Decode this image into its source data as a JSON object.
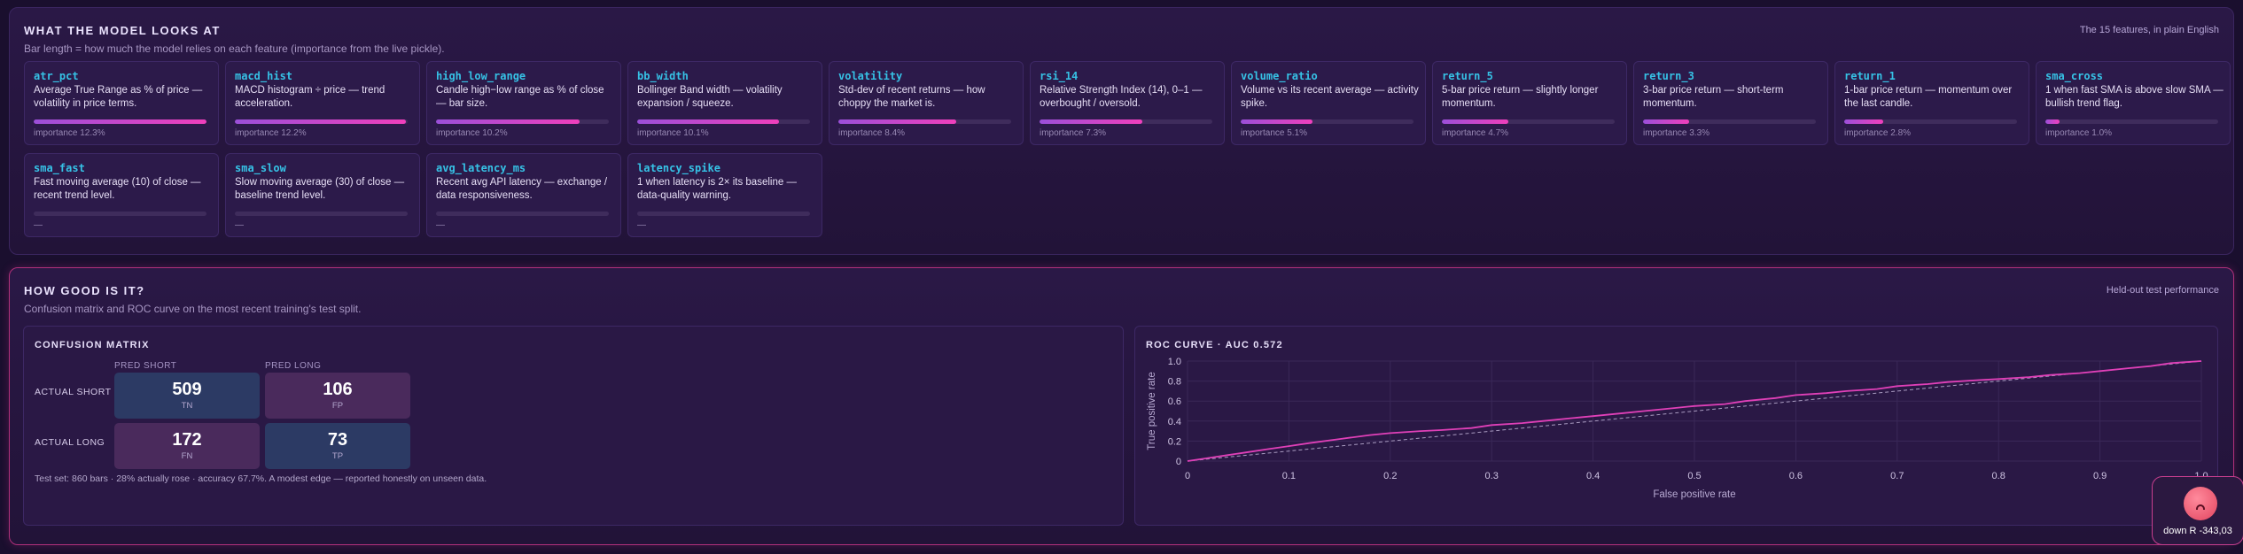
{
  "features_panel": {
    "title": "WHAT THE MODEL LOOKS AT",
    "subtitle": "Bar length = how much the model relies on each feature (importance from the live pickle).",
    "right_note": "The 15 features, in plain English",
    "features": [
      {
        "name": "atr_pct",
        "desc": "Average True Range as % of price — volatility in price terms.",
        "importance": 12.3,
        "importance_label": "importance 12.3%"
      },
      {
        "name": "macd_hist",
        "desc": "MACD histogram ÷ price — trend acceleration.",
        "importance": 12.2,
        "importance_label": "importance 12.2%"
      },
      {
        "name": "high_low_range",
        "desc": "Candle high−low range as % of close — bar size.",
        "importance": 10.2,
        "importance_label": "importance 10.2%"
      },
      {
        "name": "bb_width",
        "desc": "Bollinger Band width — volatility expansion / squeeze.",
        "importance": 10.1,
        "importance_label": "importance 10.1%"
      },
      {
        "name": "volatility",
        "desc": "Std-dev of recent returns — how choppy the market is.",
        "importance": 8.4,
        "importance_label": "importance 8.4%"
      },
      {
        "name": "rsi_14",
        "desc": "Relative Strength Index (14), 0–1 — overbought / oversold.",
        "importance": 7.3,
        "importance_label": "importance 7.3%"
      },
      {
        "name": "volume_ratio",
        "desc": "Volume vs its recent average — activity spike.",
        "importance": 5.1,
        "importance_label": "importance 5.1%"
      },
      {
        "name": "return_5",
        "desc": "5-bar price return — slightly longer momentum.",
        "importance": 4.7,
        "importance_label": "importance 4.7%"
      },
      {
        "name": "return_3",
        "desc": "3-bar price return — short-term momentum.",
        "importance": 3.3,
        "importance_label": "importance 3.3%"
      },
      {
        "name": "return_1",
        "desc": "1-bar price return — momentum over the last candle.",
        "importance": 2.8,
        "importance_label": "importance 2.8%"
      },
      {
        "name": "sma_cross",
        "desc": "1 when fast SMA is above slow SMA — bullish trend flag.",
        "importance": 1.0,
        "importance_label": "importance 1.0%"
      },
      {
        "name": "sma_fast",
        "desc": "Fast moving average (10) of close — recent trend level.",
        "importance": null,
        "importance_label": "—"
      },
      {
        "name": "sma_slow",
        "desc": "Slow moving average (30) of close — baseline trend level.",
        "importance": null,
        "importance_label": "—"
      },
      {
        "name": "avg_latency_ms",
        "desc": "Recent avg API latency — exchange / data responsiveness.",
        "importance": null,
        "importance_label": "—"
      },
      {
        "name": "latency_spike",
        "desc": "1 when latency is 2× its baseline — data-quality warning.",
        "importance": null,
        "importance_label": "—"
      }
    ]
  },
  "perf_panel": {
    "title": "HOW GOOD IS IT?",
    "subtitle": "Confusion matrix and ROC curve on the most recent training's test split.",
    "right_note": "Held-out test performance"
  },
  "confusion_matrix": {
    "title": "CONFUSION MATRIX",
    "col_labels": [
      "PRED SHORT",
      "PRED LONG"
    ],
    "row_labels": [
      "ACTUAL SHORT",
      "ACTUAL LONG"
    ],
    "cells": [
      [
        {
          "value": "509",
          "tag": "TN"
        },
        {
          "value": "106",
          "tag": "FP"
        }
      ],
      [
        {
          "value": "172",
          "tag": "FN"
        },
        {
          "value": "73",
          "tag": "TP"
        }
      ]
    ],
    "footnote": "Test set: 860 bars · 28% actually rose · accuracy 67.7%. A modest edge — reported honestly on unseen data."
  },
  "colors": {
    "correct_cell": "#2c3a64",
    "wrong_cell": "#4a2a5c",
    "roc_line": "#e040b8",
    "diagonal": "#a99bc0"
  },
  "chart_data": {
    "type": "line",
    "title": "ROC CURVE · AUC 0.572",
    "xlabel": "False positive rate",
    "ylabel": "True positive rate",
    "xlim": [
      0,
      1
    ],
    "ylim": [
      0,
      1
    ],
    "grid": true,
    "x_ticks": [
      "0",
      "0.1",
      "0.2",
      "0.3",
      "0.4",
      "0.5",
      "0.6",
      "0.7",
      "0.8",
      "0.9",
      "1.0"
    ],
    "y_ticks": [
      "0",
      "0.2",
      "0.4",
      "0.6",
      "0.8",
      "1.0"
    ],
    "series": [
      {
        "points": [
          [
            0,
            0
          ],
          [
            0.02,
            0.03
          ],
          [
            0.04,
            0.06
          ],
          [
            0.06,
            0.09
          ],
          [
            0.08,
            0.12
          ],
          [
            0.1,
            0.15
          ],
          [
            0.12,
            0.18
          ],
          [
            0.15,
            0.22
          ],
          [
            0.18,
            0.26
          ],
          [
            0.2,
            0.28
          ],
          [
            0.23,
            0.3
          ],
          [
            0.25,
            0.31
          ],
          [
            0.28,
            0.33
          ],
          [
            0.3,
            0.36
          ],
          [
            0.33,
            0.38
          ],
          [
            0.35,
            0.4
          ],
          [
            0.38,
            0.43
          ],
          [
            0.4,
            0.45
          ],
          [
            0.43,
            0.48
          ],
          [
            0.45,
            0.5
          ],
          [
            0.48,
            0.53
          ],
          [
            0.5,
            0.55
          ],
          [
            0.53,
            0.57
          ],
          [
            0.55,
            0.6
          ],
          [
            0.58,
            0.63
          ],
          [
            0.6,
            0.66
          ],
          [
            0.63,
            0.68
          ],
          [
            0.65,
            0.7
          ],
          [
            0.68,
            0.72
          ],
          [
            0.7,
            0.75
          ],
          [
            0.73,
            0.77
          ],
          [
            0.75,
            0.79
          ],
          [
            0.78,
            0.81
          ],
          [
            0.8,
            0.82
          ],
          [
            0.83,
            0.84
          ],
          [
            0.85,
            0.86
          ],
          [
            0.88,
            0.88
          ],
          [
            0.9,
            0.9
          ],
          [
            0.93,
            0.93
          ],
          [
            0.95,
            0.95
          ],
          [
            0.97,
            0.98
          ],
          [
            1,
            1
          ]
        ]
      }
    ],
    "diagonal": true
  },
  "mascot": {
    "icon": "sad-face-icon",
    "label": "down R -343,03"
  }
}
